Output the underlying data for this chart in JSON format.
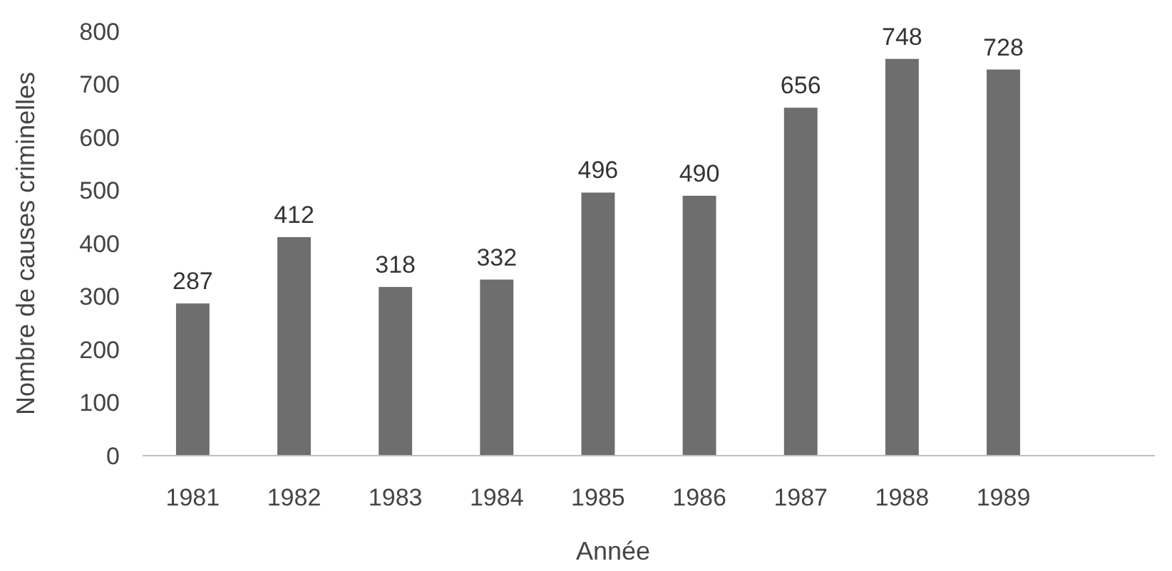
{
  "chart_data": {
    "type": "bar",
    "xlabel": "Année",
    "ylabel": "Nombre de causes criminelles",
    "categories": [
      "1981",
      "1982",
      "1983",
      "1984",
      "1985",
      "1986",
      "1987",
      "1988",
      "1989",
      null
    ],
    "values": [
      287,
      412,
      318,
      332,
      496,
      490,
      656,
      748,
      728,
      null
    ],
    "color": "#6e6e6e",
    "ylim": [
      0,
      800
    ],
    "yticks": [
      0,
      100,
      200,
      300,
      400,
      500,
      600,
      700,
      800
    ],
    "grid": false,
    "data_labels": true
  }
}
